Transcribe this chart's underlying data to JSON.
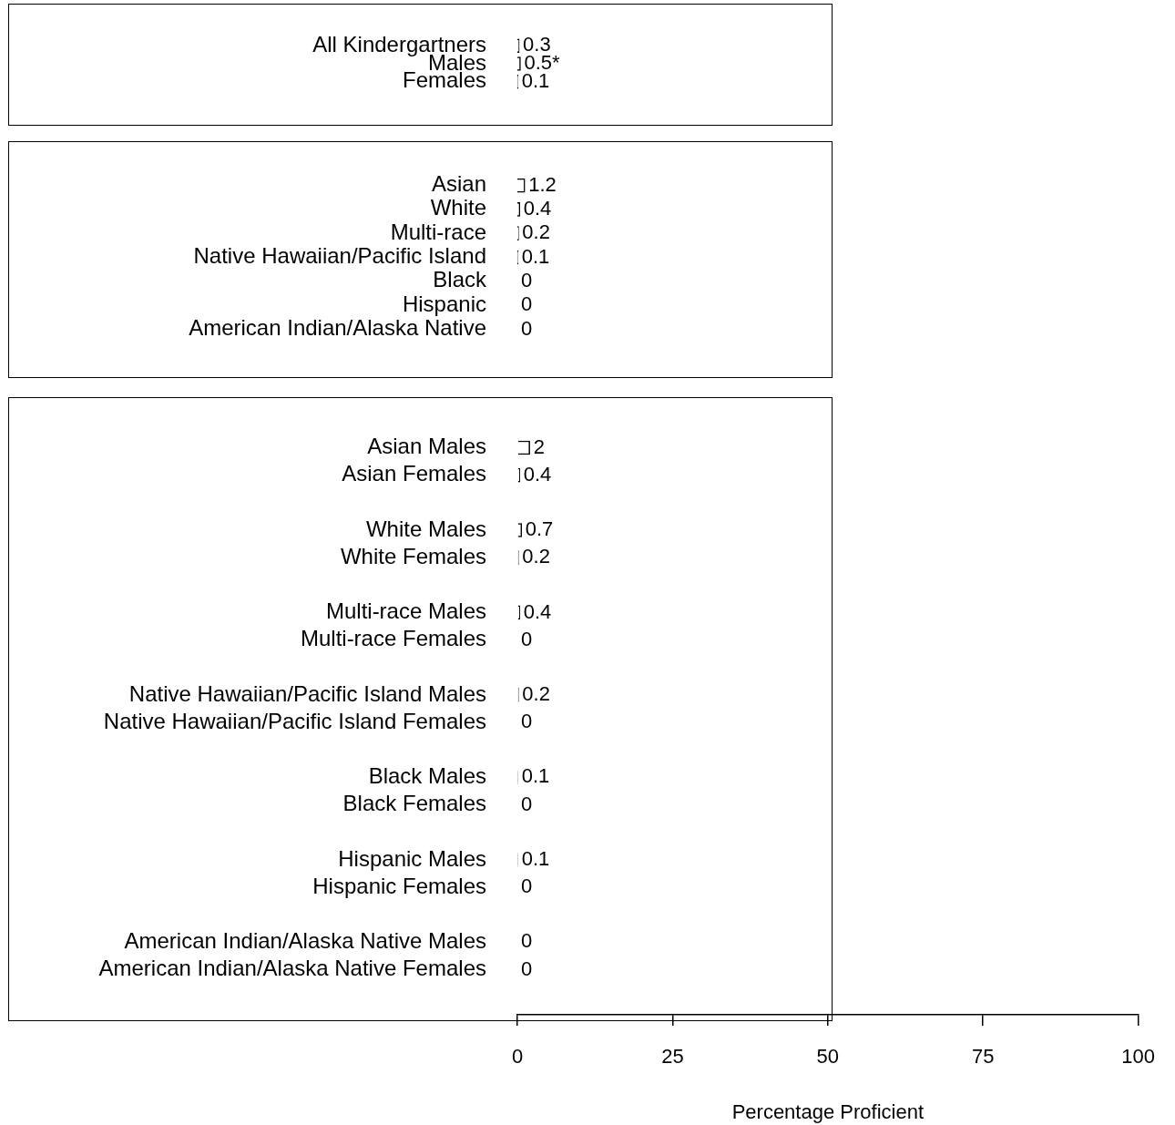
{
  "chart_data": [
    {
      "type": "bar",
      "orientation": "horizontal",
      "categories": [
        "All Kindergartners",
        "Males",
        "Females"
      ],
      "values": [
        0.3,
        0.5,
        0.1
      ],
      "value_labels": [
        "0.3",
        "0.5*",
        "0.1"
      ],
      "color": "#ffffff",
      "xlim": [
        0,
        100
      ],
      "xticks": [
        0,
        25,
        50,
        75,
        100
      ],
      "tick_labels": "y"
    },
    {
      "type": "bar",
      "orientation": "horizontal",
      "categories": [
        "Asian",
        "White",
        "Multi-race",
        "Native Hawaiian/Pacific Island",
        "Black",
        "Hispanic",
        "American Indian/Alaska Native"
      ],
      "values": [
        1.2,
        0.4,
        0.2,
        0.1,
        0,
        0,
        0
      ],
      "value_labels": [
        "1.2",
        "0.4",
        "0.2",
        "0.1",
        "0",
        "0",
        "0"
      ],
      "color": "#ffffff",
      "xlim": [
        0,
        100
      ],
      "xticks": [
        0,
        25,
        50,
        75,
        100
      ],
      "tick_labels": "y"
    },
    {
      "type": "bar",
      "orientation": "horizontal",
      "categories": [
        "Asian Males",
        "Asian Females",
        null,
        "White Males",
        "White Females",
        null,
        "Multi-race Males",
        "Multi-race Females",
        null,
        "Native Hawaiian/Pacific Island Males",
        "Native Hawaiian/Pacific Island Females",
        null,
        "Black Males",
        "Black Females",
        null,
        "Hispanic Males",
        "Hispanic Females",
        null,
        "American Indian/Alaska Native Males",
        "American Indian/Alaska Native Females"
      ],
      "values": [
        2,
        0.4,
        null,
        0.7,
        0.2,
        null,
        0.4,
        0,
        null,
        0.2,
        0,
        null,
        0.1,
        0,
        null,
        0.1,
        0,
        null,
        0,
        0
      ],
      "value_labels": [
        "2",
        "0.4",
        null,
        "0.7",
        "0.2",
        null,
        "0.4",
        "0",
        null,
        "0.2",
        "0",
        null,
        "0.1",
        "0",
        null,
        "0.1",
        "0",
        null,
        "0",
        "0"
      ],
      "color": "#ffffff",
      "xlim": [
        0,
        100
      ],
      "xticks": [
        0,
        25,
        50,
        75,
        100
      ],
      "xlabel": "Percentage Proficient"
    }
  ]
}
